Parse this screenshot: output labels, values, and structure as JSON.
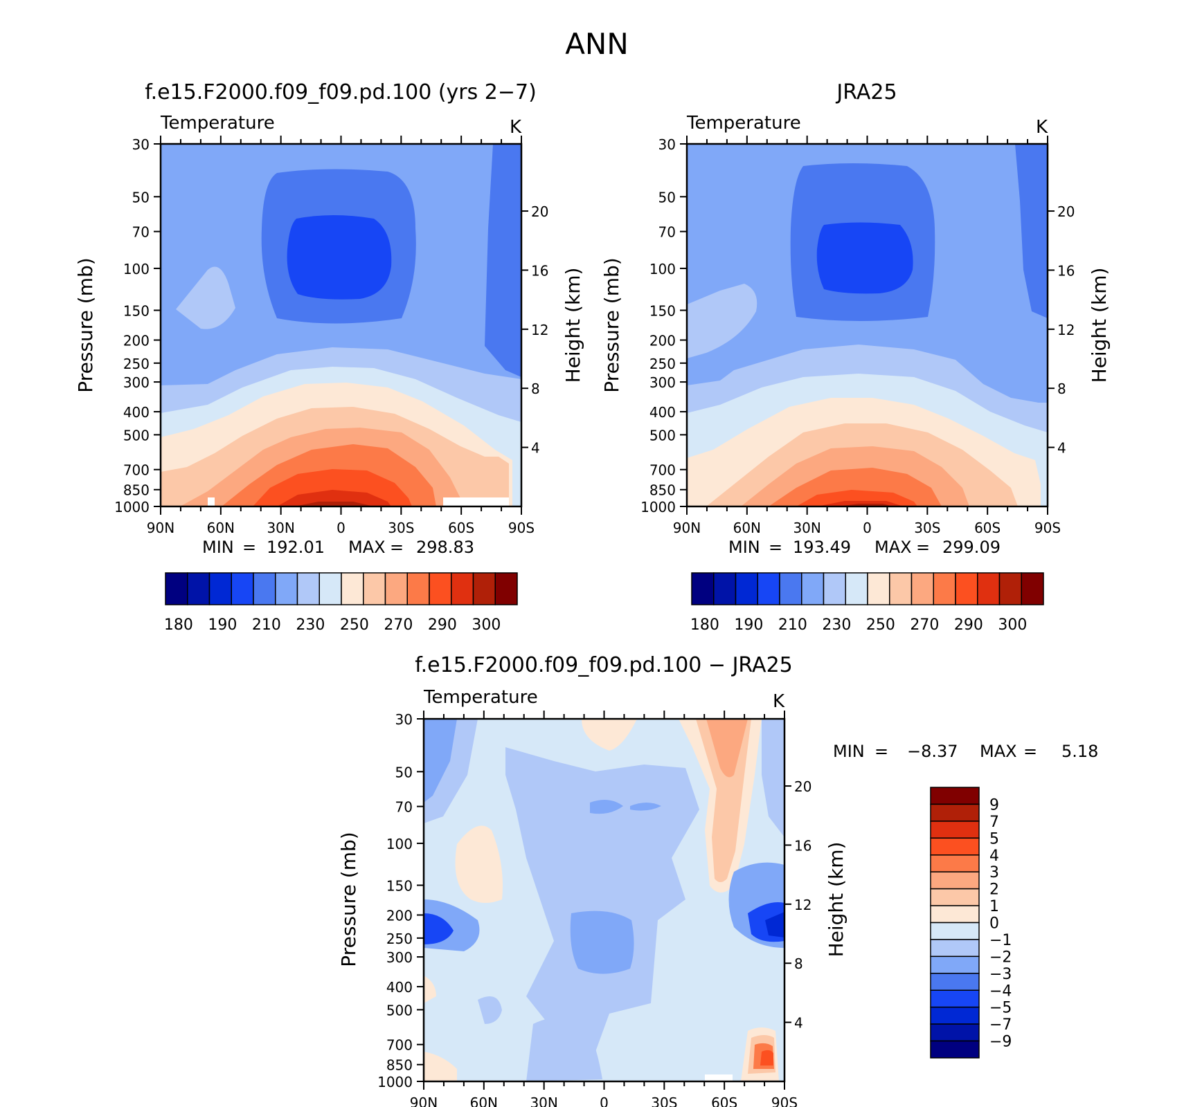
{
  "figure": {
    "title": "ANN"
  },
  "chart_data": [
    {
      "type": "heatmap",
      "id": "model",
      "title": "f.e15.F2000.f09_f09.pd.100 (yrs 2−7)",
      "variable": "Temperature",
      "units": "K",
      "xlabel": "",
      "ylabel": "Pressure (mb)",
      "ylabel_right": "Height (km)",
      "x_ticks": [
        "90N",
        "60N",
        "30N",
        "0",
        "30S",
        "60S",
        "90S"
      ],
      "y_ticks": [
        "30",
        "50",
        "70",
        "100",
        "150",
        "200",
        "250",
        "300",
        "400",
        "500",
        "700",
        "850",
        "1000"
      ],
      "right_ticks": [
        "20",
        "16",
        "12",
        "8",
        "4"
      ],
      "min_label": "MIN",
      "min_value": "192.01",
      "max_label": "MAX",
      "max_value": "298.83",
      "colorbar_labels": [
        "180",
        "190",
        "210",
        "230",
        "250",
        "270",
        "290",
        "300"
      ],
      "colors": [
        "#000080",
        "#0013a8",
        "#0028d4",
        "#1746f5",
        "#4a78f0",
        "#80a8f8",
        "#b0c8f8",
        "#d6e8f8",
        "#fde8d6",
        "#fcc8a8",
        "#fca880",
        "#fc7a48",
        "#fc5020",
        "#e03010",
        "#b02008",
        "#800000"
      ]
    },
    {
      "type": "heatmap",
      "id": "obs",
      "title": "JRA25",
      "variable": "Temperature",
      "units": "K",
      "xlabel": "",
      "ylabel": "Pressure (mb)",
      "ylabel_right": "Height (km)",
      "x_ticks": [
        "90N",
        "60N",
        "30N",
        "0",
        "30S",
        "60S",
        "90S"
      ],
      "y_ticks": [
        "30",
        "50",
        "70",
        "100",
        "150",
        "200",
        "250",
        "300",
        "400",
        "500",
        "700",
        "850",
        "1000"
      ],
      "right_ticks": [
        "20",
        "16",
        "12",
        "8",
        "4"
      ],
      "min_label": "MIN",
      "min_value": "193.49",
      "max_label": "MAX",
      "max_value": "299.09",
      "colorbar_labels": [
        "180",
        "190",
        "210",
        "230",
        "250",
        "270",
        "290",
        "300"
      ],
      "colors": [
        "#000080",
        "#0013a8",
        "#0028d4",
        "#1746f5",
        "#4a78f0",
        "#80a8f8",
        "#b0c8f8",
        "#d6e8f8",
        "#fde8d6",
        "#fcc8a8",
        "#fca880",
        "#fc7a48",
        "#fc5020",
        "#e03010",
        "#b02008",
        "#800000"
      ]
    },
    {
      "type": "heatmap",
      "id": "diff",
      "title": "f.e15.F2000.f09_f09.pd.100 − JRA25",
      "variable": "Temperature",
      "units": "K",
      "xlabel": "",
      "ylabel": "Pressure (mb)",
      "ylabel_right": "Height (km)",
      "x_ticks": [
        "90N",
        "60N",
        "30N",
        "0",
        "30S",
        "60S",
        "90S"
      ],
      "y_ticks": [
        "30",
        "50",
        "70",
        "100",
        "150",
        "200",
        "250",
        "300",
        "400",
        "500",
        "700",
        "850",
        "1000"
      ],
      "right_ticks": [
        "20",
        "16",
        "12",
        "8",
        "4"
      ],
      "min_label": "MIN",
      "min_value": "−8.37",
      "max_label": "MAX",
      "max_value": "5.18",
      "colorbar_labels": [
        "9",
        "7",
        "5",
        "4",
        "3",
        "2",
        "1",
        "0",
        "−1",
        "−2",
        "−3",
        "−4",
        "−5",
        "−7",
        "−9"
      ],
      "colors": [
        "#800000",
        "#b02008",
        "#e03010",
        "#fc5020",
        "#fc7a48",
        "#fca880",
        "#fcc8a8",
        "#fde8d6",
        "#d6e8f8",
        "#b0c8f8",
        "#80a8f8",
        "#4a78f0",
        "#1746f5",
        "#0028d4",
        "#0013a8",
        "#000080"
      ]
    }
  ]
}
